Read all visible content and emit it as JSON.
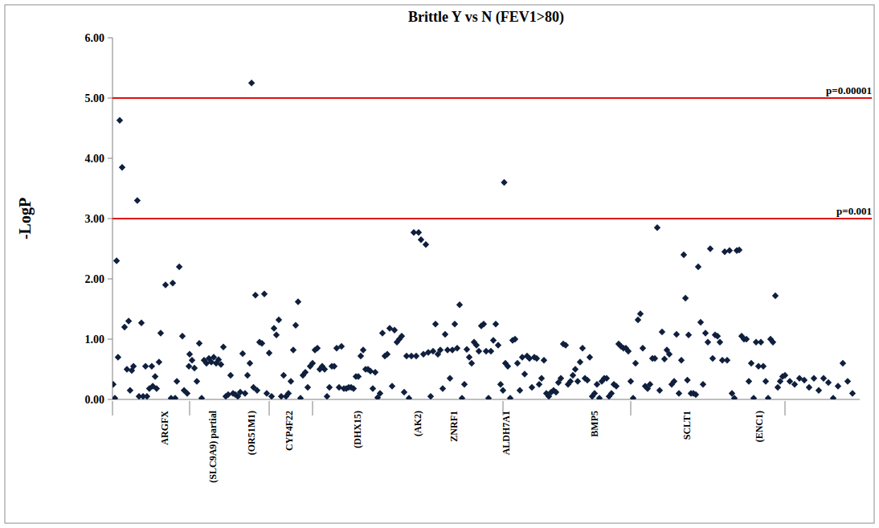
{
  "chart_data": {
    "type": "scatter",
    "title": "Brittle Y vs N (FEV1>80)",
    "y_label": "-LogP",
    "marker": "diamond",
    "color": "#0f1f3d",
    "grid": false,
    "tick_labels": "y",
    "xlim": [
      0,
      310
    ],
    "ylim": [
      0,
      6
    ],
    "yticks": [
      {
        "value": 0,
        "label": "0.00"
      },
      {
        "value": 1,
        "label": "1.00"
      },
      {
        "value": 2,
        "label": "2.00"
      },
      {
        "value": 3,
        "label": "3.00"
      },
      {
        "value": 4,
        "label": "4.00"
      },
      {
        "value": 5,
        "label": "5.00"
      },
      {
        "value": 6,
        "label": "6.00"
      }
    ],
    "xticks": [
      0,
      32,
      65,
      83,
      162,
      215,
      279
    ],
    "reference_lines": [
      {
        "value": 5,
        "label": "p=0.00001",
        "color": "#e01010"
      },
      {
        "value": 3,
        "label": "p=0.001",
        "color": "#e01010"
      }
    ],
    "gene_labels": [
      {
        "x": 21.7,
        "label": "ARGFX"
      },
      {
        "x": 41.7,
        "label": "(SLC9A9) partial"
      },
      {
        "x": 57.7,
        "label": "(OR51M1)"
      },
      {
        "x": 73.3,
        "label": "CYP4F22"
      },
      {
        "x": 101.7,
        "label": "(DHX15)"
      },
      {
        "x": 126.7,
        "label": "(AK2)"
      },
      {
        "x": 141.7,
        "label": "ZNRF1"
      },
      {
        "x": 163.3,
        "label": "ALDH7A1"
      },
      {
        "x": 200,
        "label": "BMP5"
      },
      {
        "x": 238.3,
        "label": "SCLT1"
      },
      {
        "x": 268.3,
        "label": "(ENC1)"
      }
    ],
    "x": [
      0.3,
      1,
      1.7,
      2.3,
      3,
      4,
      5,
      6,
      6.7,
      7.3,
      8,
      8.7,
      10.3,
      11,
      12,
      12.7,
      13.7,
      14.3,
      15.3,
      16.3,
      16.7,
      17.7,
      18.3,
      19.3,
      20,
      22,
      24.3,
      25,
      26,
      26.7,
      27.7,
      29,
      29.7,
      31,
      31.7,
      32,
      33,
      34,
      35,
      36,
      37,
      38,
      39,
      40,
      41,
      42,
      43,
      44,
      45,
      46,
      47,
      48,
      49,
      50,
      51,
      52,
      53,
      54,
      55,
      56,
      57,
      57.7,
      58.5,
      59.3,
      60,
      61,
      62,
      63,
      64,
      65,
      66,
      67,
      68,
      69,
      70,
      71,
      72,
      73,
      74,
      75,
      76,
      77,
      78,
      79,
      80,
      81,
      82,
      83,
      84,
      85,
      86,
      87,
      88,
      89,
      90,
      91,
      92,
      93,
      94,
      95,
      96,
      97,
      98,
      99,
      100,
      101,
      102,
      103,
      104,
      105,
      106,
      107,
      108,
      109,
      110,
      111,
      112,
      113,
      114,
      115,
      116,
      117,
      118,
      119,
      120,
      121,
      122,
      123,
      124,
      125,
      126,
      127,
      128,
      129,
      130,
      131,
      132,
      133,
      134,
      135,
      136,
      137,
      138,
      139,
      140,
      141,
      142,
      143,
      144,
      145,
      146,
      147,
      148,
      149,
      150,
      151,
      152,
      153,
      154,
      155,
      156,
      157,
      158,
      159,
      160,
      161,
      162,
      162.5,
      163,
      164,
      165,
      166,
      167,
      168,
      169,
      170,
      171,
      172,
      173,
      174,
      175,
      176,
      177,
      178,
      179,
      180,
      181,
      182,
      183,
      184,
      185,
      186,
      187,
      188,
      189,
      190,
      191,
      192,
      193,
      194,
      195,
      196,
      197,
      198,
      199,
      200,
      201,
      202,
      203,
      204,
      205,
      206,
      207,
      208,
      209,
      210,
      211,
      212,
      213,
      214,
      215,
      216,
      217,
      218,
      219,
      220,
      221,
      222,
      223,
      224,
      225,
      226,
      227,
      228,
      229,
      230,
      231,
      232,
      233,
      234,
      235,
      236,
      237,
      237.7,
      238.5,
      239,
      240,
      241,
      242,
      243,
      244,
      245,
      246,
      247,
      248,
      249,
      250,
      251,
      252,
      253,
      254,
      255,
      256,
      257,
      258,
      259,
      260,
      261,
      262,
      263,
      264,
      265,
      266,
      267,
      268,
      269,
      270,
      271,
      272,
      273,
      274,
      275,
      276,
      277,
      278,
      279,
      281,
      283,
      285,
      287,
      289,
      291,
      293,
      295,
      297,
      299,
      301,
      303,
      305,
      307
    ],
    "values": [
      0.25,
      0.02,
      2.3,
      0.7,
      4.63,
      3.85,
      1.2,
      0.5,
      1.3,
      0.15,
      0.48,
      0.55,
      3.3,
      0.05,
      1.27,
      0.05,
      0.55,
      0.05,
      0.18,
      0.55,
      0.22,
      0.38,
      0.18,
      0.62,
      1.1,
      1.9,
      0.02,
      1.93,
      0.02,
      0.3,
      2.2,
      1.05,
      0.15,
      0.1,
      0.55,
      0.75,
      0.65,
      0.52,
      0.3,
      0.93,
      0.02,
      0.65,
      0.6,
      0.68,
      0.62,
      0.7,
      0.6,
      0.66,
      0.58,
      0.87,
      0.05,
      0.08,
      0.4,
      0.1,
      0.08,
      0.05,
      0.12,
      0.76,
      0.1,
      0.4,
      0.6,
      5.25,
      0.2,
      1.73,
      0.15,
      0.95,
      0.93,
      1.75,
      0.1,
      0.77,
      0.05,
      1.18,
      1.07,
      1.32,
      0.05,
      0.4,
      0.05,
      0.1,
      0.3,
      0.82,
      1.23,
      1.62,
      0.02,
      0.4,
      0.45,
      0.2,
      0.55,
      0.6,
      0.82,
      0.85,
      0.5,
      0.55,
      0.5,
      0.05,
      0.2,
      0.55,
      0.55,
      0.85,
      0.2,
      0.88,
      0.18,
      0.18,
      0.2,
      0.2,
      0.18,
      0.38,
      0.38,
      0.72,
      0.82,
      0.5,
      0.5,
      0.47,
      0.18,
      0.45,
      0.03,
      0.1,
      1.1,
      0.72,
      0.75,
      1.18,
      0.22,
      1.15,
      0.95,
      1.0,
      1.05,
      0.12,
      0.72,
      0.02,
      0.72,
      2.77,
      0.72,
      2.77,
      2.65,
      0.75,
      2.57,
      0.78,
      0.05,
      0.8,
      1.25,
      0.75,
      0.82,
      0.18,
      1.08,
      0.82,
      0.35,
      0.82,
      1.25,
      0.85,
      1.57,
      0.02,
      0.25,
      0.83,
      0.7,
      0.6,
      0.95,
      0.9,
      0.8,
      1.22,
      1.25,
      0.8,
      0.02,
      0.8,
      0.98,
      1.25,
      0.9,
      0.25,
      0.15,
      3.6,
      0.6,
      0.55,
      0.02,
      0.98,
      1.0,
      0.6,
      0.15,
      0.7,
      0.42,
      0.72,
      0.68,
      0.2,
      0.7,
      0.68,
      0.25,
      0.35,
      0.65,
      0.1,
      0.05,
      0.12,
      0.15,
      0.12,
      0.28,
      0.35,
      0.92,
      0.9,
      0.25,
      0.3,
      0.4,
      0.5,
      0.3,
      0.62,
      0.85,
      0.35,
      0.32,
      0.7,
      0.05,
      0.1,
      0.25,
      0.02,
      0.3,
      0.35,
      0.35,
      0.05,
      0.1,
      0.25,
      0.22,
      0.92,
      0.88,
      0.85,
      0.85,
      0.8,
      0.3,
      0.02,
      0.6,
      1.32,
      1.42,
      0.85,
      0.22,
      0.18,
      0.25,
      0.68,
      0.68,
      2.85,
      0.15,
      1.12,
      0.67,
      0.82,
      0.75,
      0.25,
      0.3,
      1.08,
      0.1,
      0.65,
      2.4,
      1.68,
      0.32,
      1.07,
      0.1,
      0.1,
      0.08,
      2.2,
      1.28,
      0.25,
      1.1,
      0.95,
      2.5,
      0.68,
      1.07,
      1.05,
      0.95,
      0.65,
      2.45,
      0.65,
      2.47,
      0.1,
      0.02,
      2.47,
      2.48,
      1.05,
      1.0,
      1.0,
      0.3,
      0.6,
      0.02,
      0.95,
      0.55,
      0.95,
      0.55,
      0.3,
      0.02,
      1.0,
      0.95,
      1.72,
      0.2,
      0.3,
      0.38,
      0.4,
      0.3,
      0.25,
      0.35,
      0.32,
      0.2,
      0.35,
      0.15,
      0.35,
      0.28,
      0.02,
      0.22,
      0.6,
      0.3,
      0.1
    ]
  }
}
